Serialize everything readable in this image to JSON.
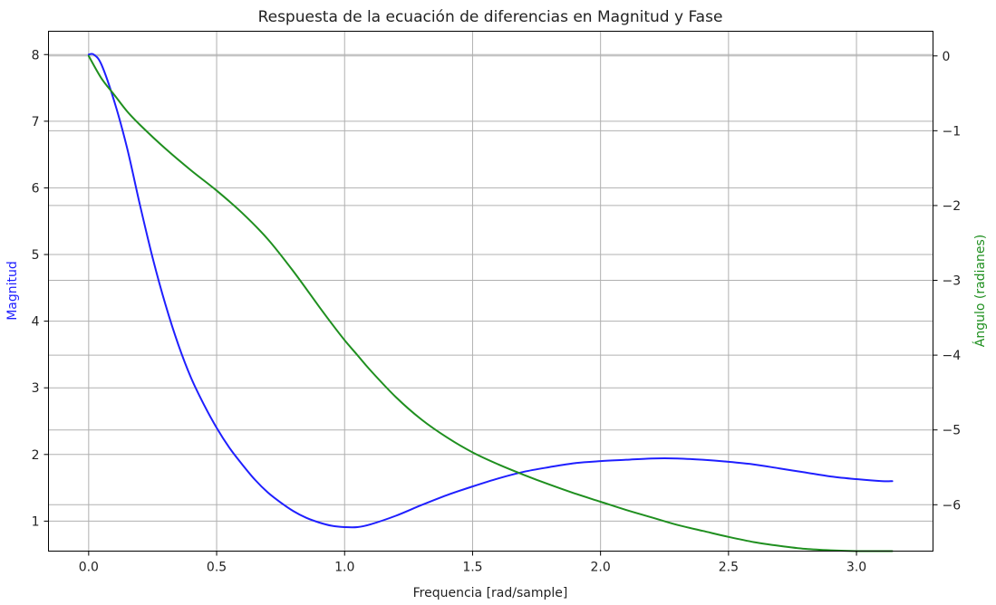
{
  "chart_data": {
    "type": "line",
    "title": "Respuesta de la ecuación de diferencias en Magnitud y Fase",
    "xlabel": "Frequencia [rad/sample]",
    "ylabel": "Magnitud",
    "y2label": "Ángulo (radianes)",
    "xlim": [
      -0.157,
      3.299
    ],
    "ylim": [
      0.55,
      8.35
    ],
    "y2lim": [
      -6.62,
      0.33
    ],
    "xticks": [
      0.0,
      0.5,
      1.0,
      1.5,
      2.0,
      2.5,
      3.0
    ],
    "xtick_labels": [
      "0.0",
      "0.5",
      "1.0",
      "1.5",
      "2.0",
      "2.5",
      "3.0"
    ],
    "yticks": [
      1,
      2,
      3,
      4,
      5,
      6,
      7,
      8
    ],
    "ytick_labels": [
      "1",
      "2",
      "3",
      "4",
      "5",
      "6",
      "7",
      "8"
    ],
    "y2ticks": [
      0,
      -1,
      -2,
      -3,
      -4,
      -5,
      -6
    ],
    "y2tick_labels": [
      "0",
      "−1",
      "−2",
      "−3",
      "−4",
      "−5",
      "−6"
    ],
    "grid": true,
    "series": [
      {
        "axis": "left",
        "color": "#1f1fff",
        "x": [
          0.0,
          0.02,
          0.05,
          0.1,
          0.15,
          0.2,
          0.25,
          0.3,
          0.35,
          0.4,
          0.45,
          0.5,
          0.55,
          0.6,
          0.65,
          0.7,
          0.75,
          0.8,
          0.85,
          0.9,
          0.95,
          1.0,
          1.05,
          1.1,
          1.2,
          1.3,
          1.4,
          1.5,
          1.6,
          1.7,
          1.8,
          1.9,
          2.0,
          2.1,
          2.2,
          2.3,
          2.4,
          2.5,
          2.6,
          2.7,
          2.8,
          2.9,
          3.0,
          3.1,
          3.14
        ],
        "values": [
          8.0,
          8.0,
          7.85,
          7.3,
          6.6,
          5.75,
          4.95,
          4.25,
          3.65,
          3.15,
          2.75,
          2.4,
          2.1,
          1.85,
          1.62,
          1.43,
          1.28,
          1.15,
          1.05,
          0.98,
          0.93,
          0.91,
          0.91,
          0.95,
          1.08,
          1.24,
          1.39,
          1.52,
          1.64,
          1.74,
          1.81,
          1.87,
          1.9,
          1.92,
          1.94,
          1.94,
          1.92,
          1.89,
          1.85,
          1.79,
          1.73,
          1.67,
          1.63,
          1.6,
          1.6
        ]
      },
      {
        "axis": "right",
        "color": "#1f8f1f",
        "x": [
          0.0,
          0.05,
          0.1,
          0.15,
          0.2,
          0.3,
          0.4,
          0.5,
          0.6,
          0.7,
          0.8,
          0.9,
          0.95,
          1.0,
          1.05,
          1.1,
          1.2,
          1.3,
          1.4,
          1.5,
          1.6,
          1.7,
          1.8,
          1.9,
          2.0,
          2.1,
          2.2,
          2.3,
          2.4,
          2.5,
          2.6,
          2.7,
          2.8,
          2.9,
          3.0,
          3.14
        ],
        "values": [
          0.0,
          -0.3,
          -0.52,
          -0.74,
          -0.92,
          -1.24,
          -1.53,
          -1.8,
          -2.1,
          -2.45,
          -2.88,
          -3.35,
          -3.58,
          -3.8,
          -4.0,
          -4.2,
          -4.56,
          -4.86,
          -5.1,
          -5.3,
          -5.46,
          -5.6,
          -5.73,
          -5.85,
          -5.96,
          -6.07,
          -6.17,
          -6.27,
          -6.35,
          -6.43,
          -6.5,
          -6.55,
          -6.59,
          -6.61,
          -6.62,
          -6.62
        ]
      }
    ]
  }
}
